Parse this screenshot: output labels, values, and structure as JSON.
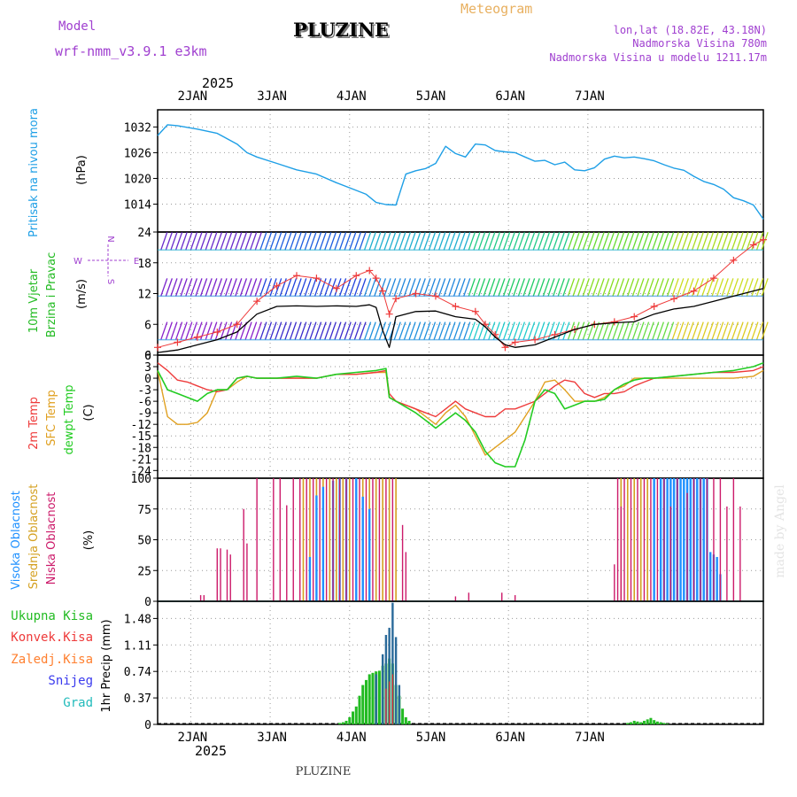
{
  "header": {
    "model_label": "Model",
    "model_name": "wrf-nmm_v3.9.1  e3km",
    "title": "PLUZINE",
    "meteogram_label": "Meteogram",
    "coords": "lon,lat (18.82E, 43.18N)",
    "elevation": "Nadmorska Visina 780m",
    "model_elevation": "Nadmorska Visina u modelu 1211.17m",
    "year_top": "2025",
    "year_bottom": "2025",
    "footer_station": "PLUZINE",
    "watermark": "made by Angel"
  },
  "colors": {
    "pressure": "#1e9fe6",
    "wind_mean": "#000000",
    "wind_gust": "#ee3a3a",
    "t2m": "#ee3a3a",
    "sfc": "#e0a020",
    "dew": "#22cc22",
    "cloud_high": "#1e90ff",
    "cloud_mid": "#d4a020",
    "cloud_low": "#cc1a6a",
    "rain_total": "#22bb22",
    "rain_conv": "#ee3a3a",
    "rain_frz": "#ff8030",
    "snow": "#3a3aee",
    "hail": "#22bbbb",
    "model_text": "#a040d0",
    "meteogram_text": "#e8b060"
  },
  "days": [
    "2JAN",
    "3JAN",
    "4JAN",
    "5JAN",
    "6JAN",
    "7JAN"
  ],
  "chart_data": [
    {
      "type": "line",
      "name": "pressure",
      "ylabel_main": "Pritisak na nivou mora",
      "ylabel_unit": "(hPa)",
      "yticks": [
        1032,
        1026,
        1020,
        1014
      ],
      "ylim": [
        1007.5,
        1036
      ],
      "x": [
        0,
        3,
        6,
        12,
        18,
        24,
        27,
        30,
        36,
        42,
        48,
        54,
        60,
        63,
        66,
        69,
        72,
        75,
        78,
        81,
        84,
        87,
        90,
        93,
        96,
        99,
        102,
        105,
        108,
        111,
        114,
        117,
        120,
        123,
        126,
        129,
        132,
        135,
        138,
        141,
        144,
        147,
        150,
        153,
        156,
        159,
        162,
        165,
        168,
        171,
        174,
        177,
        180,
        183
      ],
      "values": [
        1030,
        1032.5,
        1032.3,
        1031.5,
        1030.5,
        1028,
        1026,
        1025,
        1023.5,
        1022,
        1021,
        1019,
        1017.2,
        1016.3,
        1014.4,
        1013.9,
        1013.8,
        1021,
        1021.8,
        1022.3,
        1023.5,
        1027.5,
        1025.8,
        1025,
        1028,
        1027.8,
        1026.5,
        1026.2,
        1026,
        1025,
        1024,
        1024.2,
        1023.2,
        1023.8,
        1022,
        1021.8,
        1022.5,
        1024.5,
        1025.2,
        1024.8,
        1025,
        1024.6,
        1024.1,
        1023.2,
        1022.4,
        1021.9,
        1020.5,
        1019.3,
        1018.6,
        1017.5,
        1015.5,
        1014.8,
        1013.8,
        1010.5
      ]
    },
    {
      "type": "line",
      "name": "wind",
      "ylabel_main": "10m Vjetar",
      "ylabel_sub": "Brzina i Pravac",
      "ylabel_unit": "(m/s)",
      "compass": {
        "n": "N",
        "s": "S",
        "w": "W",
        "e": "E"
      },
      "yticks": [
        24,
        18,
        12,
        6,
        0
      ],
      "ylim": [
        0,
        24
      ],
      "x": [
        0,
        6,
        12,
        18,
        24,
        30,
        36,
        42,
        48,
        54,
        60,
        64,
        66,
        68,
        70,
        72,
        78,
        84,
        90,
        96,
        99,
        102,
        105,
        108,
        114,
        120,
        126,
        132,
        138,
        144,
        150,
        156,
        162,
        168,
        174,
        180,
        183
      ],
      "mean": [
        0.5,
        1.0,
        2.0,
        3.0,
        4.5,
        8.0,
        9.5,
        9.6,
        9.5,
        9.6,
        9.5,
        9.8,
        9.3,
        4.8,
        1.5,
        7.5,
        8.5,
        8.6,
        7.5,
        7.0,
        5.5,
        3.5,
        2.0,
        1.5,
        2.0,
        3.5,
        5.0,
        6.0,
        6.3,
        6.5,
        8.0,
        9.0,
        9.5,
        10.5,
        11.5,
        12.5,
        13.0
      ],
      "gust": [
        1.5,
        2.5,
        3.5,
        4.5,
        6.0,
        10.5,
        13.5,
        15.5,
        15.0,
        13.0,
        15.5,
        16.5,
        15.0,
        12.5,
        8.0,
        11.0,
        12.0,
        11.5,
        9.5,
        8.5,
        6.0,
        4.0,
        1.5,
        2.5,
        3.0,
        4.0,
        5.0,
        6.0,
        6.5,
        7.5,
        9.5,
        11.0,
        12.5,
        15.0,
        18.5,
        21.5,
        22.5
      ]
    },
    {
      "type": "line",
      "name": "temperature",
      "ylabel_a": "2m Temp",
      "ylabel_b": "SFC Temp",
      "ylabel_c": "dewpt Temp",
      "ylabel_unit": "(C)",
      "yticks": [
        6,
        3,
        0,
        -3,
        -6,
        -9,
        -12,
        -15,
        -18,
        -21,
        -24
      ],
      "ylim": [
        -26,
        6
      ],
      "x": [
        0,
        3,
        6,
        9,
        12,
        15,
        18,
        21,
        24,
        27,
        30,
        36,
        42,
        48,
        54,
        60,
        66,
        69,
        70,
        72,
        78,
        81,
        84,
        87,
        90,
        93,
        96,
        99,
        102,
        105,
        108,
        111,
        114,
        117,
        120,
        123,
        126,
        129,
        132,
        135,
        138,
        141,
        144,
        147,
        150,
        156,
        162,
        168,
        174,
        180,
        183
      ],
      "t2m": [
        4,
        2,
        -0.5,
        -1,
        -2,
        -3,
        -3.5,
        -3,
        0,
        0.5,
        0,
        0,
        0,
        0,
        1,
        1,
        1.5,
        2,
        -4,
        -6,
        -8,
        -9,
        -10,
        -8,
        -6,
        -8,
        -9,
        -10,
        -10,
        -8,
        -8,
        -7,
        -6,
        -4,
        -2,
        -0.5,
        -1,
        -4,
        -5,
        -4,
        -4,
        -3.5,
        -2,
        -1,
        0,
        0.5,
        1,
        1.5,
        1.5,
        2,
        3
      ],
      "sfc": [
        2,
        -10,
        -12,
        -12,
        -11.5,
        -9,
        -3,
        -3,
        -1,
        0.5,
        0,
        0,
        0,
        0,
        1,
        1,
        1.5,
        1.5,
        -5,
        -6,
        -8,
        -10,
        -12,
        -9,
        -7,
        -10,
        -15,
        -20,
        -18,
        -16,
        -14,
        -10,
        -6,
        -1,
        -0.5,
        -3,
        -6,
        -6,
        -6,
        -5,
        -3,
        -2,
        0,
        0,
        0,
        0,
        0,
        0,
        0,
        0.5,
        2
      ],
      "dew": [
        2,
        -3,
        -4,
        -5,
        -6,
        -4,
        -3,
        -3,
        0,
        0.5,
        0,
        0,
        0.5,
        0,
        1,
        1.5,
        2,
        2.5,
        -5,
        -6,
        -9,
        -11,
        -13,
        -11,
        -9,
        -11,
        -14,
        -19,
        -22,
        -23,
        -23,
        -16,
        -6,
        -3,
        -4,
        -8,
        -7,
        -6,
        -6,
        -5.5,
        -3,
        -1.5,
        -0.5,
        0,
        0,
        0.5,
        1,
        1.5,
        2,
        3,
        4
      ]
    },
    {
      "type": "bar",
      "name": "cloud cover",
      "ylabel_a": "Visoka Oblacnost",
      "ylabel_b": "Srednja Oblacnost",
      "ylabel_c": "Niska Oblacnost",
      "ylabel_unit": "(%)",
      "yticks": [
        100,
        75,
        50,
        25,
        0
      ],
      "ylim": [
        0,
        100
      ],
      "high_x": [
        46,
        48,
        50,
        53,
        55,
        57,
        60,
        62,
        64,
        150,
        152,
        153,
        154,
        155,
        156,
        157,
        158,
        159,
        160,
        161,
        162,
        163,
        164,
        165,
        166,
        167,
        168,
        169,
        170
      ],
      "high": [
        36,
        86,
        93,
        98,
        100,
        100,
        100,
        85,
        75,
        100,
        100,
        100,
        100,
        100,
        100,
        100,
        100,
        100,
        100,
        100,
        100,
        100,
        100,
        100,
        100,
        40,
        38,
        36,
        22
      ],
      "mid_x": [
        44,
        46,
        48,
        50,
        52,
        54,
        56,
        58,
        60,
        62,
        64,
        66,
        68,
        70,
        72,
        140,
        142,
        144,
        146,
        148,
        150,
        152,
        154,
        156,
        158,
        160,
        162
      ],
      "mid": [
        100,
        100,
        100,
        100,
        100,
        100,
        100,
        100,
        100,
        100,
        100,
        100,
        100,
        100,
        100,
        100,
        100,
        100,
        100,
        100,
        100,
        100,
        100,
        100,
        100,
        100,
        100
      ],
      "low_x": [
        13,
        14,
        18,
        19,
        21,
        22,
        26,
        27,
        30,
        35,
        37,
        39,
        41,
        43,
        45,
        47,
        49,
        51,
        53,
        55,
        57,
        59,
        61,
        63,
        65,
        67,
        69,
        71,
        74,
        75,
        90,
        94,
        104,
        108,
        138,
        139,
        140,
        141,
        143,
        145,
        147,
        149,
        151,
        153,
        155,
        157,
        160,
        162,
        164,
        166,
        168,
        170,
        172,
        174,
        176
      ],
      "low": [
        5,
        5,
        43,
        43,
        42,
        38,
        75,
        47,
        100,
        100,
        100,
        78,
        100,
        100,
        100,
        100,
        100,
        100,
        100,
        100,
        100,
        100,
        100,
        100,
        100,
        100,
        100,
        100,
        62,
        40,
        4,
        7,
        7,
        5,
        30,
        100,
        77,
        100,
        100,
        100,
        100,
        100,
        100,
        100,
        77,
        100,
        88,
        100,
        100,
        100,
        100,
        100,
        77,
        100,
        77
      ]
    },
    {
      "type": "bar",
      "name": "precipitation",
      "legend": [
        "Ukupna Kisa",
        "Konvek.Kisa",
        "Zaledj.Kisa",
        "Snijeg",
        "Grad"
      ],
      "ylabel_unit": "1hr Precip (mm)",
      "yticks": [
        1.48,
        1.11,
        0.74,
        0.37,
        0
      ],
      "ylim": [
        0,
        1.72
      ],
      "rain_x": [
        55,
        56,
        57,
        58,
        59,
        60,
        61,
        62,
        63,
        64,
        65,
        66,
        67,
        68,
        69,
        70,
        71,
        72,
        73,
        74,
        75,
        76,
        142,
        143,
        144,
        145,
        146,
        147,
        148,
        149,
        150,
        151,
        152,
        153,
        154
      ],
      "rain": [
        0.02,
        0.03,
        0.05,
        0.1,
        0.18,
        0.25,
        0.4,
        0.55,
        0.62,
        0.7,
        0.72,
        0.74,
        0.75,
        0.82,
        0.85,
        0.92,
        0.85,
        0.55,
        0.4,
        0.22,
        0.1,
        0.05,
        0.02,
        0.03,
        0.05,
        0.04,
        0.03,
        0.05,
        0.07,
        0.09,
        0.06,
        0.04,
        0.03,
        0.02,
        0.01
      ],
      "snow_x": [
        66,
        68,
        69,
        70,
        71,
        72,
        73
      ],
      "snow": [
        0.7,
        0.98,
        1.25,
        1.35,
        1.7,
        1.22,
        0.55
      ],
      "conv_x": [
        69,
        70,
        71
      ],
      "conv": [
        0.5,
        0.6,
        0.7
      ]
    }
  ]
}
